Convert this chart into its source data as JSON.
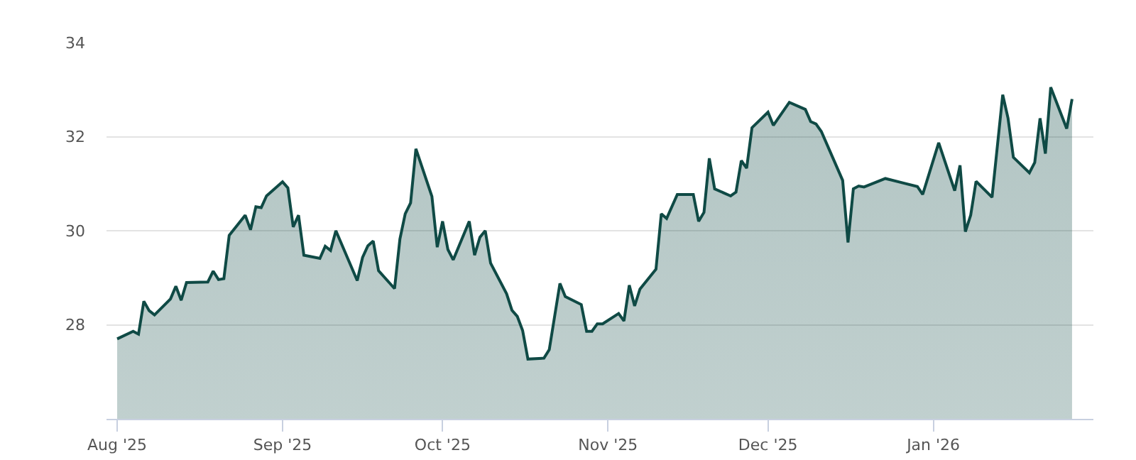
{
  "chart_data": {
    "type": "area",
    "color": "#0f4a45",
    "x": [
      "2025-08-01",
      "2025-08-04",
      "2025-08-05",
      "2025-08-06",
      "2025-08-07",
      "2025-08-08",
      "2025-08-11",
      "2025-08-12",
      "2025-08-13",
      "2025-08-14",
      "2025-08-18",
      "2025-08-19",
      "2025-08-20",
      "2025-08-21",
      "2025-08-22",
      "2025-08-25",
      "2025-08-26",
      "2025-08-27",
      "2025-08-28",
      "2025-08-29",
      "2025-09-01",
      "2025-09-02",
      "2025-09-03",
      "2025-09-04",
      "2025-09-05",
      "2025-09-08",
      "2025-09-09",
      "2025-09-10",
      "2025-09-11",
      "2025-09-15",
      "2025-09-16",
      "2025-09-17",
      "2025-09-18",
      "2025-09-19",
      "2025-09-22",
      "2025-09-23",
      "2025-09-24",
      "2025-09-25",
      "2025-09-26",
      "2025-09-29",
      "2025-09-30",
      "2025-10-01",
      "2025-10-02",
      "2025-10-03",
      "2025-10-06",
      "2025-10-07",
      "2025-10-08",
      "2025-10-09",
      "2025-10-10",
      "2025-10-13",
      "2025-10-14",
      "2025-10-15",
      "2025-10-16",
      "2025-10-17",
      "2025-10-20",
      "2025-10-21",
      "2025-10-23",
      "2025-10-24",
      "2025-10-27",
      "2025-10-28",
      "2025-10-29",
      "2025-10-30",
      "2025-10-31",
      "2025-11-03",
      "2025-11-04",
      "2025-11-05",
      "2025-11-06",
      "2025-11-07",
      "2025-11-10",
      "2025-11-11",
      "2025-11-12",
      "2025-11-14",
      "2025-11-17",
      "2025-11-18",
      "2025-11-19",
      "2025-11-20",
      "2025-11-21",
      "2025-11-24",
      "2025-11-25",
      "2025-11-26",
      "2025-11-27",
      "2025-11-28",
      "2025-12-01",
      "2025-12-02",
      "2025-12-05",
      "2025-12-08",
      "2025-12-09",
      "2025-12-10",
      "2025-12-11",
      "2025-12-15",
      "2025-12-16",
      "2025-12-17",
      "2025-12-18",
      "2025-12-19",
      "2025-12-23",
      "2025-12-29",
      "2025-12-30",
      "2026-01-02",
      "2026-01-05",
      "2026-01-06",
      "2026-01-07",
      "2026-01-08",
      "2026-01-09",
      "2026-01-12",
      "2026-01-14",
      "2026-01-15",
      "2026-01-16",
      "2026-01-19",
      "2026-01-20",
      "2026-01-21",
      "2026-01-22",
      "2026-01-23",
      "2026-01-26",
      "2026-01-27"
    ],
    "values": [
      27.7,
      27.86,
      27.8,
      28.5,
      28.3,
      28.21,
      28.55,
      28.82,
      28.52,
      28.9,
      28.91,
      29.14,
      28.96,
      28.98,
      29.9,
      30.33,
      30.02,
      30.51,
      30.49,
      30.74,
      31.04,
      30.91,
      30.08,
      30.33,
      29.48,
      29.41,
      29.67,
      29.58,
      30.0,
      28.94,
      29.43,
      29.68,
      29.78,
      29.15,
      28.77,
      29.82,
      30.36,
      30.59,
      31.74,
      30.73,
      29.65,
      30.2,
      29.6,
      29.38,
      30.2,
      29.48,
      29.86,
      30.0,
      29.31,
      28.66,
      28.31,
      28.18,
      27.88,
      27.27,
      27.29,
      27.47,
      28.88,
      28.6,
      28.43,
      27.86,
      27.86,
      28.02,
      28.02,
      28.24,
      28.08,
      28.84,
      28.4,
      28.76,
      29.18,
      30.36,
      30.26,
      30.77,
      30.77,
      30.2,
      30.39,
      31.54,
      30.89,
      30.74,
      30.82,
      31.49,
      31.33,
      32.19,
      32.52,
      32.24,
      32.73,
      32.58,
      32.32,
      32.27,
      32.11,
      31.07,
      29.75,
      30.89,
      30.95,
      30.93,
      31.11,
      30.94,
      30.77,
      31.87,
      30.85,
      31.39,
      29.98,
      30.33,
      31.05,
      30.71,
      32.89,
      32.39,
      31.56,
      31.23,
      31.45,
      32.39,
      31.64,
      33.05,
      32.17,
      32.8
    ],
    "xlim": [
      "2025-07-30",
      "2026-01-31"
    ],
    "xticks": [
      {
        "value": "2025-08-01",
        "label": "Aug '25"
      },
      {
        "value": "2025-09-01",
        "label": "Sep '25"
      },
      {
        "value": "2025-10-01",
        "label": "Oct '25"
      },
      {
        "value": "2025-11-01",
        "label": "Nov '25"
      },
      {
        "value": "2025-12-01",
        "label": "Dec '25"
      },
      {
        "value": "2026-01-01",
        "label": "Jan '26"
      }
    ],
    "ylim": [
      26,
      34
    ],
    "yticks": [
      28,
      30,
      32,
      34
    ],
    "grid": "y"
  }
}
